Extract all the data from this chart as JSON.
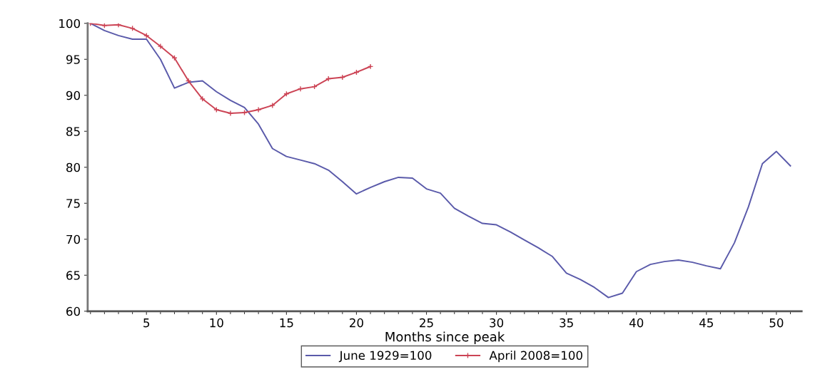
{
  "chart_data": {
    "type": "line",
    "xlabel": "Months since peak",
    "xlim": [
      0.8,
      51.8
    ],
    "xticks": [
      5,
      10,
      15,
      20,
      25,
      30,
      35,
      40,
      45,
      50
    ],
    "ylim": [
      60,
      100
    ],
    "yticks": [
      60,
      65,
      70,
      75,
      80,
      85,
      90,
      95,
      100
    ],
    "grid": false,
    "legend": "bottom",
    "series": [
      {
        "name": "June 1929=100",
        "color": "#5a5aaa",
        "marker": "none",
        "x": [
          1,
          2,
          3,
          4,
          5,
          6,
          7,
          8,
          9,
          10,
          11,
          12,
          13,
          14,
          15,
          16,
          17,
          18,
          19,
          20,
          21,
          22,
          23,
          24,
          25,
          26,
          27,
          28,
          29,
          30,
          31,
          32,
          33,
          34,
          35,
          36,
          37,
          38,
          39,
          40,
          41,
          42,
          43,
          44,
          45,
          46,
          47,
          48,
          49,
          50,
          51
        ],
        "values": [
          100,
          99,
          98.3,
          97.8,
          97.8,
          95,
          91,
          91.8,
          92,
          90.5,
          89.3,
          88.3,
          86,
          82.6,
          81.5,
          81,
          80.5,
          79.6,
          78,
          76.3,
          77.2,
          78,
          78.6,
          78.5,
          77,
          76.4,
          74.3,
          73.2,
          72.2,
          72,
          71,
          69.9,
          68.8,
          67.6,
          65.3,
          64.4,
          63.3,
          61.9,
          62.5,
          65.5,
          66.5,
          66.9,
          67.1,
          66.8,
          66.3,
          65.9,
          69.5,
          74.5,
          80.5,
          82.2,
          80.2
        ]
      },
      {
        "name": "April 2008=100",
        "color": "#cc4455",
        "marker": "cross",
        "x": [
          1,
          2,
          3,
          4,
          5,
          6,
          7,
          8,
          9,
          10,
          11,
          12,
          13,
          14,
          15,
          16,
          17,
          18,
          19,
          20,
          21
        ],
        "values": [
          100,
          99.7,
          99.8,
          99.3,
          98.3,
          96.8,
          95.2,
          92,
          89.5,
          88,
          87.5,
          87.6,
          88,
          88.6,
          90.2,
          90.9,
          91.2,
          92.3,
          92.5,
          93.2,
          94
        ]
      }
    ]
  }
}
